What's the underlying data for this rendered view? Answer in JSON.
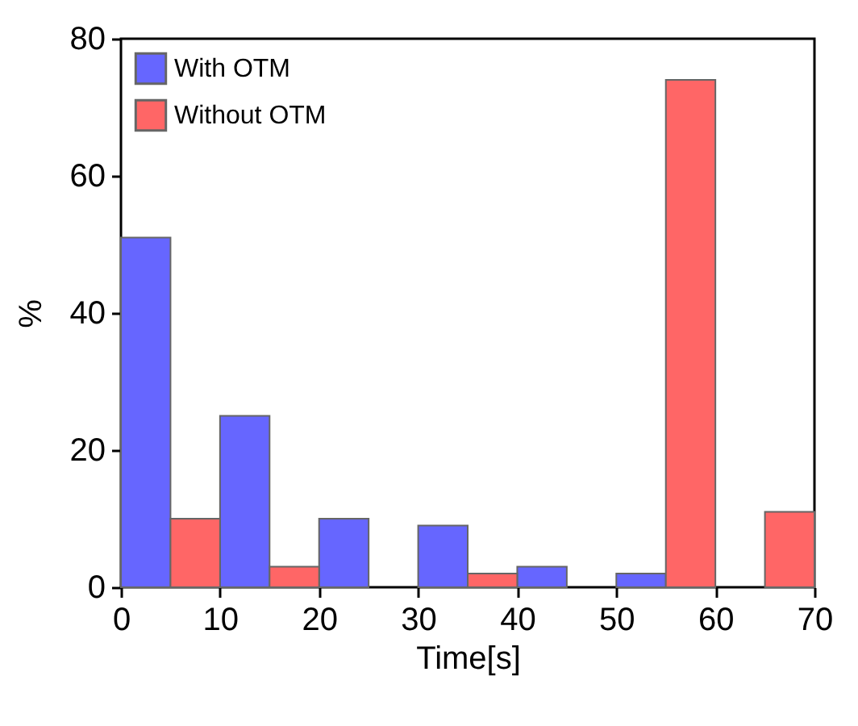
{
  "chart_data": {
    "type": "bar",
    "xlabel": "Time[s]",
    "ylabel": "%",
    "series": [
      {
        "name": "With      OTM",
        "color": "#6666ff",
        "x": [
          2.5,
          12.5,
          22.5,
          32.5,
          42.5,
          52.5
        ],
        "values": [
          51,
          25,
          10,
          9,
          3,
          2
        ]
      },
      {
        "name": "Without  OTM",
        "color": "#ff6666",
        "x": [
          7.5,
          17.5,
          37.5,
          57.5,
          67.5
        ],
        "values": [
          10,
          3,
          2,
          74,
          11
        ]
      }
    ],
    "xlim": [
      0,
      70
    ],
    "xticks": [
      0,
      10,
      20,
      30,
      40,
      50,
      60,
      70
    ],
    "ylim": [
      0,
      80
    ],
    "yticks": [
      0,
      20,
      40,
      60,
      80
    ],
    "legend": "top left",
    "grid": false
  }
}
